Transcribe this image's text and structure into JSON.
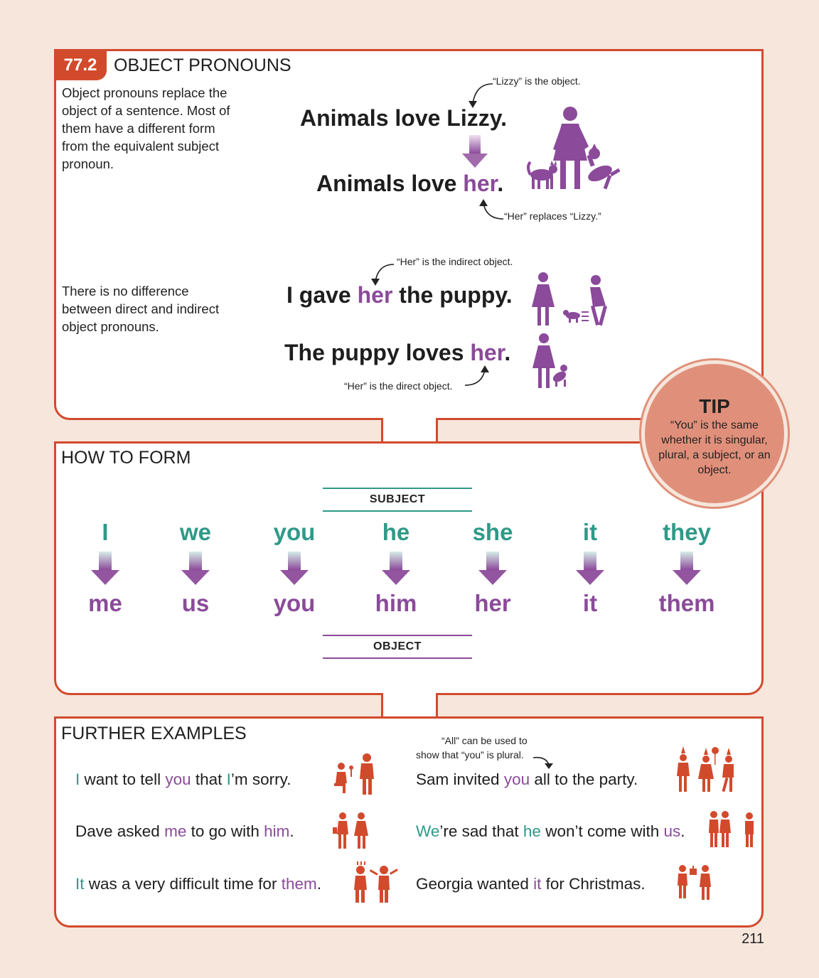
{
  "section1": {
    "number": "77.2",
    "title": "OBJECT PRONOUNS",
    "intro": "Object pronouns replace the object of a sentence. Most of them have a different form from the equivalent subject pronoun.",
    "note_lizzy": "“Lizzy” is the object.",
    "sentence1": "Animals love Lizzy.",
    "sentence2_pre": "Animals love ",
    "sentence2_obj": "her",
    "sentence2_post": ".",
    "note_her_replaces": "“Her” replaces “Lizzy.”",
    "intro2": "There is no difference between direct and indirect object pronouns.",
    "note_indirect": "“Her” is the indirect object.",
    "sentence3_pre": "I gave ",
    "sentence3_obj": "her",
    "sentence3_post": " the puppy.",
    "sentence4_pre": "The puppy loves ",
    "sentence4_obj": "her",
    "sentence4_post": ".",
    "note_direct": "“Her” is the direct object."
  },
  "tip": {
    "title": "TIP",
    "text": "“You” is the same whether it is singular, plural, a subject, or an object."
  },
  "section2": {
    "title": "HOW TO FORM",
    "subject_label": "SUBJECT",
    "object_label": "OBJECT",
    "pairs": [
      {
        "subject": "I",
        "object": "me"
      },
      {
        "subject": "we",
        "object": "us"
      },
      {
        "subject": "you",
        "object": "you"
      },
      {
        "subject": "he",
        "object": "him"
      },
      {
        "subject": "she",
        "object": "her"
      },
      {
        "subject": "it",
        "object": "it"
      },
      {
        "subject": "they",
        "object": "them"
      }
    ]
  },
  "section3": {
    "title": "FURTHER EXAMPLES",
    "note_all_1": "“All” can be used to",
    "note_all_2": "show that “you” is plural.",
    "ex1": {
      "a": "I",
      "b": " want to tell ",
      "c": "you",
      "d": " that ",
      "e": "I",
      "f": "’m sorry."
    },
    "ex2": {
      "a": "Dave asked ",
      "b": "me",
      "c": " to go with ",
      "d": "him",
      "e": "."
    },
    "ex3": {
      "a": "It",
      "b": " was a very difficult time for ",
      "c": "them",
      "d": "."
    },
    "ex4": {
      "a": "Sam invited ",
      "b": "you",
      "c": " all to the party."
    },
    "ex5": {
      "a": "We",
      "b": "’re sad that ",
      "c": "he",
      "d": " won’t come with ",
      "e": "us",
      "f": "."
    },
    "ex6": {
      "a": "Georgia wanted ",
      "b": "it",
      "c": " for Christmas."
    }
  },
  "page_number": "211",
  "colors": {
    "accent": "#d24a2c",
    "subject": "#2e9a88",
    "object": "#8b4a9a",
    "tip": "#e0907a"
  }
}
